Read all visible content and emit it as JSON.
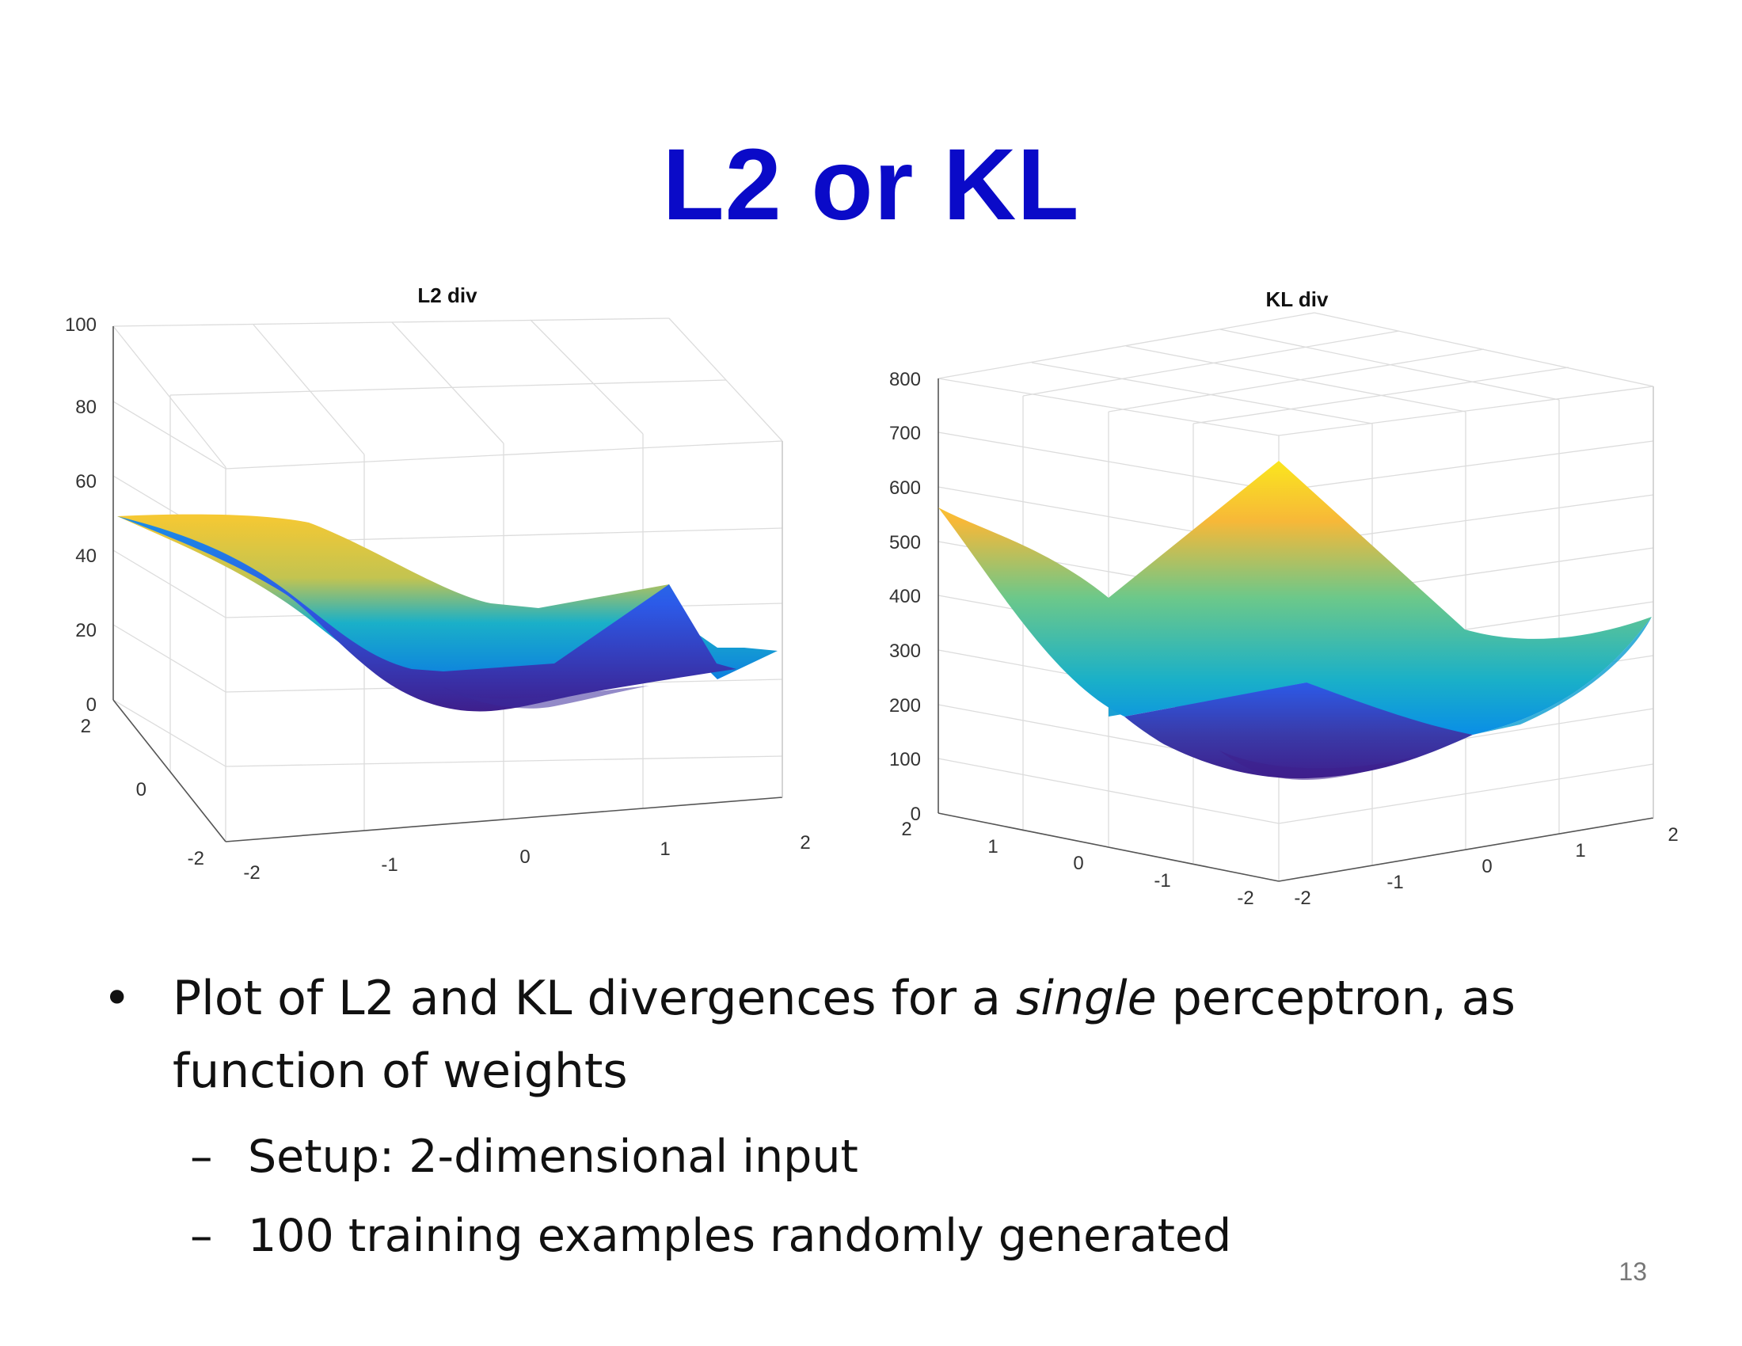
{
  "slide": {
    "title": "L2 or KL",
    "page_number": "13",
    "bullet_main_before": "Plot of L2 and KL divergences for a ",
    "bullet_main_emph": "single",
    "bullet_main_after": " perceptron, as function of weights",
    "sub_bullets": [
      "Setup:  2-dimensional input",
      "100 training examples randomly generated"
    ]
  },
  "colors": {
    "title": "#0a0ac8",
    "colormap": [
      "#3e1f8c",
      "#2c5ae8",
      "#0a72e6",
      "#1ab0c8",
      "#6cc88a",
      "#c3c450",
      "#f7c832",
      "#fae61e"
    ]
  },
  "chart_data": [
    {
      "type": "surface3d",
      "title": "L2 div",
      "x_ticks": [
        "-2",
        "-1",
        "0",
        "1",
        "2"
      ],
      "y_ticks": [
        "-2",
        "0",
        "2"
      ],
      "z_ticks": [
        "0",
        "20",
        "40",
        "60",
        "80",
        "100"
      ],
      "xlim": [
        -2,
        2
      ],
      "ylim": [
        -2,
        2
      ],
      "zlim": [
        0,
        100
      ],
      "grid": true,
      "colormap": "parula"
    },
    {
      "type": "surface3d",
      "title": "KL div",
      "x_ticks": [
        "-2",
        "-1",
        "0",
        "1",
        "2"
      ],
      "y_ticks": [
        "-2",
        "-1",
        "0",
        "1",
        "2"
      ],
      "z_ticks": [
        "0",
        "100",
        "200",
        "300",
        "400",
        "500",
        "600",
        "700",
        "800"
      ],
      "xlim": [
        -2,
        2
      ],
      "ylim": [
        -2,
        2
      ],
      "zlim": [
        0,
        800
      ],
      "grid": true,
      "colormap": "parula"
    }
  ]
}
